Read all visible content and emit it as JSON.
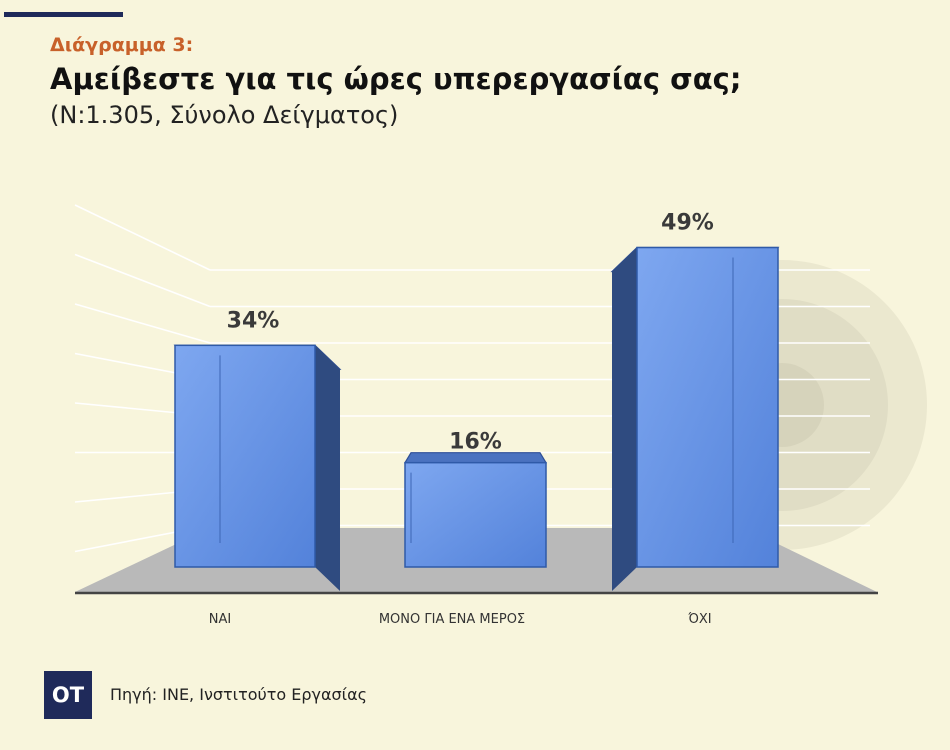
{
  "header": {
    "kicker": "Διάγραμμα 3:",
    "title": "Αμείβεστε για τις ώρες υπερεργασίας σας;",
    "subtitle": "(Ν:1.305, Σύνολο Δείγματος)"
  },
  "footer": {
    "logo_text": "ΟΤ",
    "source": "Πηγή: ΙΝΕ, Ινστιτούτο Εργασίας"
  },
  "colors": {
    "background": "#f8f5dc",
    "accent": "#c8612a",
    "brand": "#1f2a5a",
    "bar_front": "#5f8ee0",
    "bar_side": "#2f4b80",
    "floor": "#b9b9b9"
  },
  "chart_data": {
    "type": "bar",
    "categories": [
      "ΝΑΙ",
      "ΜΟΝΟ ΓΙΑ ΕΝΑ ΜΕΡΟΣ",
      "ΌΧΙ"
    ],
    "values": [
      34,
      16,
      49
    ],
    "value_labels": [
      "34%",
      "16%",
      "49%"
    ],
    "unit": "%",
    "ylim": [
      0,
      60
    ],
    "grid": true,
    "style": "3d"
  }
}
